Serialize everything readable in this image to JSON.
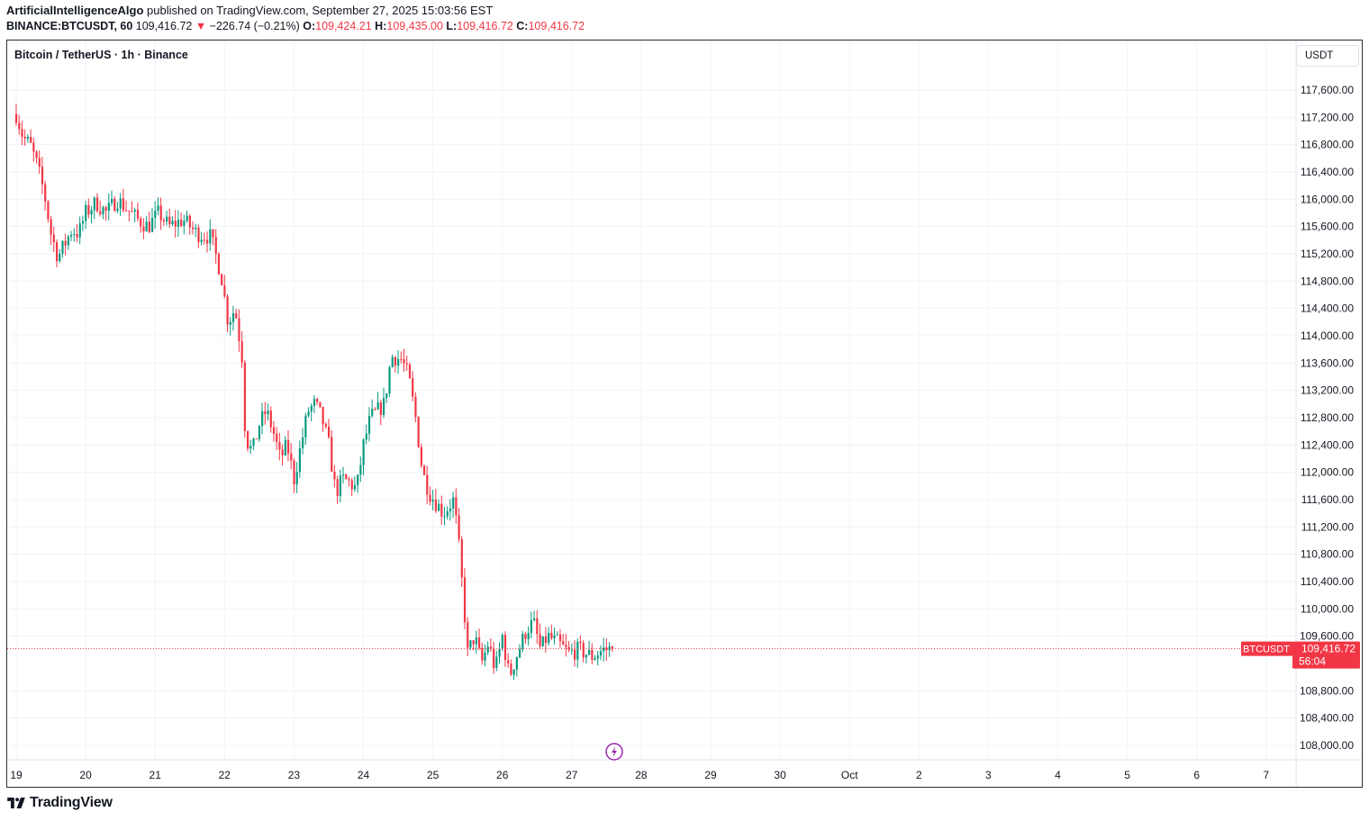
{
  "header": {
    "author": "ArtificialIntelligenceAlgo",
    "published": "published on TradingView.com, September 27, 2025 15:03:56 EST",
    "symbol": "BINANCE:BTCUSDT, 60",
    "last": "109,416.72",
    "change": "−226.74 (−0.21%)",
    "change_direction": "down",
    "o_label": "O:",
    "o_value": "109,424.21",
    "h_label": "H:",
    "h_value": "109,435.00",
    "l_label": "L:",
    "l_value": "109,416.72",
    "c_label": "C:",
    "c_value": "109,416.72"
  },
  "legend": "Bitcoin / TetherUS · 1h · Binance",
  "currency_button": "USDT",
  "footer": {
    "brand": "TradingView"
  },
  "icons": {
    "lightning": "lightning-event-icon",
    "logo": "tradingview-logo-icon"
  },
  "colors": {
    "up": "#089981",
    "down": "#f23645",
    "grid": "#f0f3fa",
    "event": "#9c27b0"
  },
  "chart_data": {
    "type": "candlestick",
    "title": "Bitcoin / TetherUS · 1h · Binance",
    "price_label": {
      "symbol": "BTCUSDT",
      "price": "109,416.72",
      "countdown": "56:04",
      "value": 109416.72
    },
    "y_ticks": [
      "117,600.00",
      "117,200.00",
      "116,800.00",
      "116,400.00",
      "116,000.00",
      "115,600.00",
      "115,200.00",
      "114,800.00",
      "114,400.00",
      "114,000.00",
      "113,600.00",
      "113,200.00",
      "112,800.00",
      "112,400.00",
      "112,000.00",
      "111,600.00",
      "111,200.00",
      "110,800.00",
      "110,400.00",
      "110,000.00",
      "109,600.00",
      "108,800.00",
      "108,400.00",
      "108,000.00"
    ],
    "y_range": [
      107800,
      117900
    ],
    "x_ticks": [
      "19",
      "20",
      "21",
      "22",
      "23",
      "24",
      "25",
      "26",
      "27",
      "28",
      "29",
      "30",
      "Oct",
      "2",
      "3",
      "4",
      "5",
      "6",
      "7"
    ],
    "x_range_days": [
      -0.05,
      18.5
    ],
    "last_candle_day": 8.6,
    "grid": true,
    "keypoints": [
      [
        0.0,
        117250
      ],
      [
        0.1,
        116900
      ],
      [
        0.2,
        116800
      ],
      [
        0.3,
        116500
      ],
      [
        0.4,
        116100
      ],
      [
        0.5,
        115500
      ],
      [
        0.6,
        115150
      ],
      [
        0.7,
        115350
      ],
      [
        0.8,
        115550
      ],
      [
        0.9,
        115500
      ],
      [
        1.0,
        115800
      ],
      [
        1.15,
        115950
      ],
      [
        1.3,
        115800
      ],
      [
        1.45,
        116000
      ],
      [
        1.6,
        115850
      ],
      [
        1.75,
        115700
      ],
      [
        1.9,
        115600
      ],
      [
        2.05,
        115800
      ],
      [
        2.2,
        115600
      ],
      [
        2.4,
        115700
      ],
      [
        2.6,
        115500
      ],
      [
        2.8,
        115450
      ],
      [
        2.95,
        114900
      ],
      [
        3.05,
        114200
      ],
      [
        3.15,
        114400
      ],
      [
        3.25,
        113700
      ],
      [
        3.3,
        112500
      ],
      [
        3.4,
        112300
      ],
      [
        3.5,
        112700
      ],
      [
        3.6,
        112900
      ],
      [
        3.7,
        112600
      ],
      [
        3.8,
        112200
      ],
      [
        3.9,
        112400
      ],
      [
        4.0,
        111900
      ],
      [
        4.1,
        112400
      ],
      [
        4.2,
        112900
      ],
      [
        4.3,
        113000
      ],
      [
        4.4,
        112800
      ],
      [
        4.5,
        112400
      ],
      [
        4.6,
        111700
      ],
      [
        4.7,
        111900
      ],
      [
        4.8,
        111850
      ],
      [
        4.9,
        111750
      ],
      [
        5.0,
        112400
      ],
      [
        5.1,
        112800
      ],
      [
        5.2,
        112900
      ],
      [
        5.3,
        113000
      ],
      [
        5.4,
        113700
      ],
      [
        5.55,
        113650
      ],
      [
        5.65,
        113400
      ],
      [
        5.75,
        112800
      ],
      [
        5.85,
        112000
      ],
      [
        5.95,
        111700
      ],
      [
        6.05,
        111550
      ],
      [
        6.15,
        111400
      ],
      [
        6.3,
        111600
      ],
      [
        6.38,
        110850
      ],
      [
        6.45,
        110000
      ],
      [
        6.5,
        109350
      ],
      [
        6.6,
        109600
      ],
      [
        6.7,
        109200
      ],
      [
        6.8,
        109500
      ],
      [
        6.9,
        109100
      ],
      [
        7.0,
        109600
      ],
      [
        7.1,
        109000
      ],
      [
        7.2,
        109300
      ],
      [
        7.35,
        109700
      ],
      [
        7.45,
        109800
      ],
      [
        7.55,
        109400
      ],
      [
        7.65,
        109600
      ],
      [
        7.8,
        109500
      ],
      [
        7.95,
        109350
      ],
      [
        8.1,
        109400
      ],
      [
        8.3,
        109300
      ],
      [
        8.45,
        109400
      ],
      [
        8.6,
        109417
      ]
    ]
  }
}
